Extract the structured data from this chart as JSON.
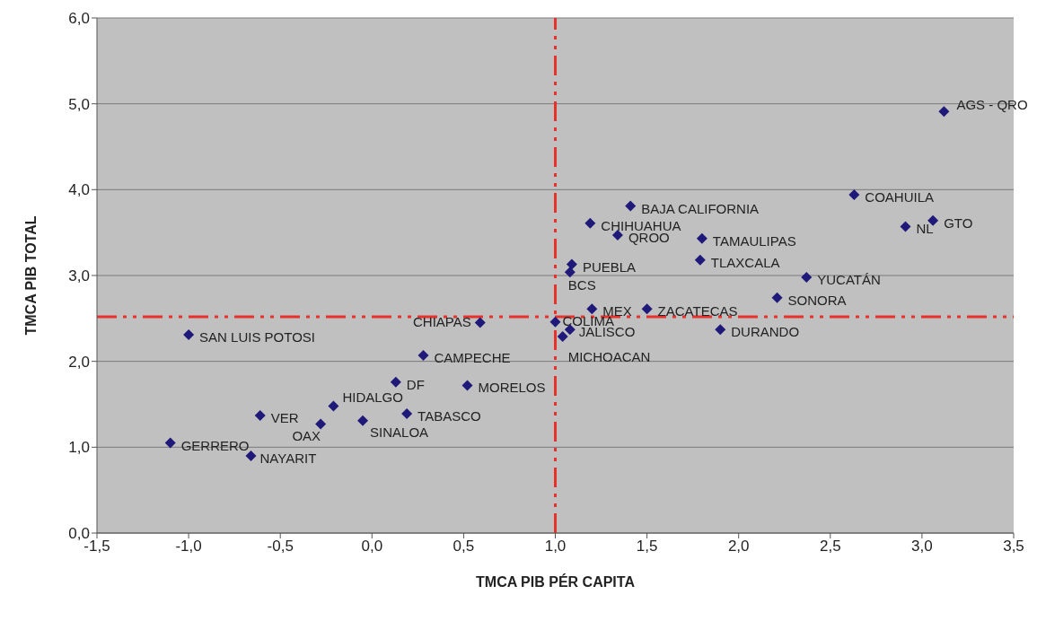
{
  "chart_data": {
    "type": "scatter",
    "xlabel": "TMCA PIB PÉR CAPITA",
    "ylabel": "TMCA PIB TOTAL",
    "x": [
      3.12,
      2.63,
      3.06,
      2.91,
      1.41,
      1.19,
      1.34,
      1.8,
      1.79,
      1.09,
      1.08,
      2.37,
      2.21,
      1.2,
      1.5,
      1.9,
      1.0,
      1.08,
      1.04,
      0.59,
      -1.0,
      0.28,
      0.13,
      0.52,
      -0.21,
      0.19,
      -0.05,
      -0.61,
      -0.28,
      -1.1,
      -0.66
    ],
    "values": [
      4.91,
      3.94,
      3.64,
      3.57,
      3.81,
      3.61,
      3.47,
      3.43,
      3.18,
      3.13,
      3.04,
      2.98,
      2.74,
      2.61,
      2.61,
      2.37,
      2.46,
      2.37,
      2.29,
      2.45,
      2.31,
      2.07,
      1.76,
      1.72,
      1.48,
      1.39,
      1.31,
      1.37,
      1.27,
      1.05,
      0.9
    ],
    "color": "#1f1a7a",
    "marker": "diamond",
    "grid": "y",
    "xlim": [
      -1.5,
      3.5
    ],
    "xticks": [
      {
        "value": -1.5,
        "label": "-1,5"
      },
      {
        "value": -1,
        "label": "-1,0"
      },
      {
        "value": -0.5,
        "label": "-0,5"
      },
      {
        "value": 0,
        "label": "0,0"
      },
      {
        "value": 0.5,
        "label": "0,5"
      },
      {
        "value": 1,
        "label": "1,0"
      },
      {
        "value": 1.5,
        "label": "1,5"
      },
      {
        "value": 2,
        "label": "2,0"
      },
      {
        "value": 2.5,
        "label": "2,5"
      },
      {
        "value": 3,
        "label": "3,0"
      },
      {
        "value": 3.5,
        "label": "3,5"
      }
    ],
    "ylim": [
      0,
      6
    ],
    "yticks": [
      {
        "value": 0,
        "label": "0,0"
      },
      {
        "value": 1,
        "label": "1,0"
      },
      {
        "value": 2,
        "label": "2,0"
      },
      {
        "value": 3,
        "label": "3,0"
      },
      {
        "value": 4,
        "label": "4,0"
      },
      {
        "value": 5,
        "label": "5,0"
      },
      {
        "value": 6,
        "label": "6,0"
      }
    ],
    "ref_lines": [
      {
        "axis": "x",
        "value": 1.0,
        "color": "#e8312a",
        "line_style": "dashdot"
      },
      {
        "axis": "y",
        "value": 2.52,
        "color": "#e8312a",
        "line_style": "dashdot"
      }
    ],
    "annotations": [
      {
        "text": "AGS - QRO",
        "x": 3.12,
        "y": 4.91
      },
      {
        "text": "COAHUILA",
        "x": 2.63,
        "y": 3.94
      },
      {
        "text": "GTO",
        "x": 3.06,
        "y": 3.64
      },
      {
        "text": "NL",
        "x": 2.91,
        "y": 3.57
      },
      {
        "text": "BAJA CALIFORNIA",
        "x": 1.41,
        "y": 3.81
      },
      {
        "text": "CHIHUAHUA",
        "x": 1.19,
        "y": 3.61
      },
      {
        "text": "QROO",
        "x": 1.34,
        "y": 3.47
      },
      {
        "text": "TAMAULIPAS",
        "x": 1.8,
        "y": 3.43
      },
      {
        "text": "TLAXCALA",
        "x": 1.79,
        "y": 3.18
      },
      {
        "text": "PUEBLA",
        "x": 1.09,
        "y": 3.13
      },
      {
        "text": "BCS",
        "x": 1.08,
        "y": 3.04
      },
      {
        "text": "YUCATÁN",
        "x": 2.37,
        "y": 2.98
      },
      {
        "text": "SONORA",
        "x": 2.21,
        "y": 2.74
      },
      {
        "text": "MEX",
        "x": 1.2,
        "y": 2.61
      },
      {
        "text": "ZACATECAS",
        "x": 1.5,
        "y": 2.61
      },
      {
        "text": "DURANDO",
        "x": 1.9,
        "y": 2.37
      },
      {
        "text": "COLIMA",
        "x": 1.0,
        "y": 2.46
      },
      {
        "text": "JALISCO",
        "x": 1.08,
        "y": 2.37
      },
      {
        "text": "MICHOACAN",
        "x": 1.04,
        "y": 2.29
      },
      {
        "text": "CHIAPAS",
        "x": 0.59,
        "y": 2.45
      },
      {
        "text": "SAN LUIS POTOSI",
        "x": -1.0,
        "y": 2.31
      },
      {
        "text": "CAMPECHE",
        "x": 0.28,
        "y": 2.07
      },
      {
        "text": "DF",
        "x": 0.13,
        "y": 1.76
      },
      {
        "text": "MORELOS",
        "x": 0.52,
        "y": 1.72
      },
      {
        "text": "HIDALGO",
        "x": -0.21,
        "y": 1.48
      },
      {
        "text": "TABASCO",
        "x": 0.19,
        "y": 1.39
      },
      {
        "text": "SINALOA",
        "x": -0.05,
        "y": 1.31
      },
      {
        "text": "VER",
        "x": -0.61,
        "y": 1.37
      },
      {
        "text": "OAX",
        "x": -0.28,
        "y": 1.27
      },
      {
        "text": "GERRERO",
        "x": -1.1,
        "y": 1.05
      },
      {
        "text": "NAYARIT",
        "x": -0.66,
        "y": 0.9
      }
    ]
  }
}
